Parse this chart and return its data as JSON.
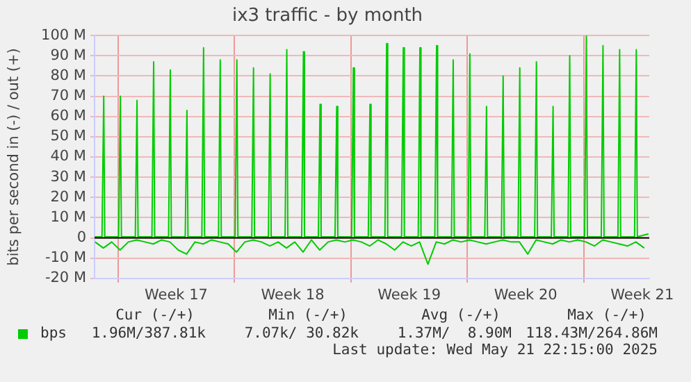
{
  "chart_data": {
    "type": "line",
    "title": "ix3 traffic - by month",
    "ylabel": "bits per second in (-) / out (+)",
    "xlim": [
      "2025-04-18T14:15",
      "2025-05-21T22:15"
    ],
    "ylim": [
      -20,
      100
    ],
    "xticks": [
      {
        "value": "2025-04-20T00:00",
        "label": null
      },
      {
        "value": "2025-04-23T12:00",
        "label": "Week 17"
      },
      {
        "value": "2025-04-27T00:00",
        "label": null
      },
      {
        "value": "2025-04-30T12:00",
        "label": "Week 18"
      },
      {
        "value": "2025-05-04T00:00",
        "label": null
      },
      {
        "value": "2025-05-07T12:00",
        "label": "Week 19"
      },
      {
        "value": "2025-05-11T00:00",
        "label": null
      },
      {
        "value": "2025-05-14T12:00",
        "label": "Week 20"
      },
      {
        "value": "2025-05-18T00:00",
        "label": null
      },
      {
        "value": "2025-05-21T12:00",
        "label": "Week 21"
      }
    ],
    "yticks": [
      {
        "value": -20,
        "label": "-20 M"
      },
      {
        "value": -10,
        "label": "-10 M"
      },
      0,
      {
        "value": 10,
        "label": "10 M"
      },
      {
        "value": 20,
        "label": "20 M"
      },
      {
        "value": 30,
        "label": "30 M"
      },
      {
        "value": 40,
        "label": "40 M"
      },
      {
        "value": 50,
        "label": "50 M"
      },
      {
        "value": 60,
        "label": "60 M"
      },
      {
        "value": 70,
        "label": "70 M"
      },
      {
        "value": 80,
        "label": "80 M"
      },
      {
        "value": 90,
        "label": "90 M"
      },
      {
        "value": 100,
        "label": "100 M"
      }
    ],
    "grid": true,
    "legend": "bottom left",
    "marker": "none",
    "line_style": "solid",
    "ref_lines": [
      {
        "axis": "y",
        "value": 0,
        "color": "#000000"
      }
    ],
    "series": [
      {
        "name": "bps",
        "color": "#00cc00",
        "x": [
          "2025-04-18T14:30",
          "2025-04-19T01:00",
          "2025-04-19T03:30",
          "2025-04-19T05:00",
          "2025-04-20T01:00",
          "2025-04-20T03:30",
          "2025-04-20T05:00",
          "2025-04-21T01:00",
          "2025-04-21T03:30",
          "2025-04-21T05:00",
          "2025-04-22T01:00",
          "2025-04-22T03:30",
          "2025-04-22T05:00",
          "2025-04-23T01:00",
          "2025-04-23T03:30",
          "2025-04-23T05:00",
          "2025-04-24T01:00",
          "2025-04-24T03:30",
          "2025-04-24T05:00",
          "2025-04-25T01:00",
          "2025-04-25T03:30",
          "2025-04-25T05:00",
          "2025-04-26T01:00",
          "2025-04-26T03:30",
          "2025-04-26T05:00",
          "2025-04-27T01:00",
          "2025-04-27T03:30",
          "2025-04-27T05:00",
          "2025-04-28T01:00",
          "2025-04-28T03:30",
          "2025-04-28T05:00",
          "2025-04-29T01:00",
          "2025-04-29T03:30",
          "2025-04-29T05:00",
          "2025-04-30T01:00",
          "2025-04-30T03:30",
          "2025-04-30T05:00",
          "2025-05-01T01:00",
          "2025-05-01T03:30",
          "2025-05-01T05:00",
          "2025-05-02T01:00",
          "2025-05-02T03:30",
          "2025-05-02T05:00",
          "2025-05-03T01:00",
          "2025-05-03T03:30",
          "2025-05-03T05:00",
          "2025-05-04T01:00",
          "2025-05-04T03:30",
          "2025-05-04T05:00",
          "2025-05-05T01:00",
          "2025-05-05T03:30",
          "2025-05-05T05:00",
          "2025-05-06T01:00",
          "2025-05-06T03:30",
          "2025-05-06T05:00",
          "2025-05-07T01:00",
          "2025-05-07T03:30",
          "2025-05-07T05:00",
          "2025-05-08T01:00",
          "2025-05-08T03:30",
          "2025-05-08T05:00",
          "2025-05-09T01:00",
          "2025-05-09T03:30",
          "2025-05-09T05:00",
          "2025-05-10T01:00",
          "2025-05-10T03:30",
          "2025-05-10T05:00",
          "2025-05-11T01:00",
          "2025-05-11T03:30",
          "2025-05-11T05:00",
          "2025-05-12T01:00",
          "2025-05-12T03:30",
          "2025-05-12T05:00",
          "2025-05-13T01:00",
          "2025-05-13T03:30",
          "2025-05-13T05:00",
          "2025-05-14T01:00",
          "2025-05-14T03:30",
          "2025-05-14T05:00",
          "2025-05-15T01:00",
          "2025-05-15T03:30",
          "2025-05-15T05:00",
          "2025-05-16T01:00",
          "2025-05-16T03:30",
          "2025-05-16T05:00",
          "2025-05-17T01:00",
          "2025-05-17T03:30",
          "2025-05-17T05:00",
          "2025-05-18T01:00",
          "2025-05-18T03:30",
          "2025-05-18T05:00",
          "2025-05-19T01:00",
          "2025-05-19T03:30",
          "2025-05-19T05:00",
          "2025-05-20T01:00",
          "2025-05-20T03:30",
          "2025-05-20T05:00",
          "2025-05-21T01:00",
          "2025-05-21T03:30",
          "2025-05-21T05:00",
          "2025-05-21T21:00"
        ],
        "values": [
          0.5,
          0.5,
          70,
          0.5,
          0.5,
          70,
          0.5,
          0.5,
          68,
          0.5,
          0.5,
          87,
          0.5,
          0.5,
          83,
          0.5,
          0.5,
          63,
          0.5,
          0.5,
          94,
          0.5,
          0.5,
          88,
          0.5,
          0.5,
          88,
          0.5,
          0.5,
          84,
          0.5,
          0.5,
          81,
          0.5,
          0.5,
          93,
          0.5,
          0.5,
          92,
          0.5,
          0.5,
          66,
          0.5,
          0.5,
          65,
          0.5,
          0.5,
          84,
          0.5,
          0.5,
          66,
          0.5,
          0.5,
          96,
          0.5,
          0.5,
          94,
          0.5,
          0.5,
          94,
          0.5,
          0.5,
          95,
          0.5,
          0.5,
          88,
          0.5,
          0.5,
          91,
          0.5,
          0.5,
          65,
          0.5,
          0.5,
          80,
          0.5,
          0.5,
          84,
          0.5,
          0.5,
          87,
          0.5,
          0.5,
          65,
          0.5,
          0.5,
          90,
          0.5,
          0.5,
          100,
          0.5,
          0.5,
          95,
          0.5,
          0.5,
          93,
          0.5,
          0.5,
          93,
          0.5,
          2
        ]
      },
      {
        "color": "#00cc00",
        "x": [
          "2025-04-18T15:00",
          "2025-04-19T03:00",
          "2025-04-19T15:00",
          "2025-04-20T03:00",
          "2025-04-20T15:00",
          "2025-04-21T03:00",
          "2025-04-21T15:00",
          "2025-04-22T03:00",
          "2025-04-22T15:00",
          "2025-04-23T03:00",
          "2025-04-23T15:00",
          "2025-04-24T03:00",
          "2025-04-24T15:00",
          "2025-04-25T03:00",
          "2025-04-25T15:00",
          "2025-04-26T03:00",
          "2025-04-26T15:00",
          "2025-04-27T03:00",
          "2025-04-27T15:00",
          "2025-04-28T03:00",
          "2025-04-28T15:00",
          "2025-04-29T03:00",
          "2025-04-29T15:00",
          "2025-04-30T03:00",
          "2025-04-30T15:00",
          "2025-05-01T03:00",
          "2025-05-01T15:00",
          "2025-05-02T03:00",
          "2025-05-02T15:00",
          "2025-05-03T03:00",
          "2025-05-03T15:00",
          "2025-05-04T03:00",
          "2025-05-04T15:00",
          "2025-05-05T03:00",
          "2025-05-05T15:00",
          "2025-05-06T03:00",
          "2025-05-06T15:00",
          "2025-05-07T03:00",
          "2025-05-07T15:00",
          "2025-05-08T03:00",
          "2025-05-08T15:00",
          "2025-05-09T03:00",
          "2025-05-09T15:00",
          "2025-05-10T03:00",
          "2025-05-10T15:00",
          "2025-05-11T03:00",
          "2025-05-11T15:00",
          "2025-05-12T03:00",
          "2025-05-12T15:00",
          "2025-05-13T03:00",
          "2025-05-13T15:00",
          "2025-05-14T03:00",
          "2025-05-14T15:00",
          "2025-05-15T03:00",
          "2025-05-15T15:00",
          "2025-05-16T03:00",
          "2025-05-16T15:00",
          "2025-05-17T03:00",
          "2025-05-17T15:00",
          "2025-05-18T03:00",
          "2025-05-18T15:00",
          "2025-05-19T03:00",
          "2025-05-19T15:00",
          "2025-05-20T03:00",
          "2025-05-20T15:00",
          "2025-05-21T03:00",
          "2025-05-21T15:00"
        ],
        "values": [
          -2,
          -5,
          -2,
          -6,
          -2,
          -1,
          -2,
          -3,
          -1,
          -2,
          -6,
          -8,
          -2,
          -3,
          -1,
          -2,
          -3,
          -7,
          -2,
          -1,
          -2,
          -4,
          -2,
          -5,
          -2,
          -7,
          -1,
          -6,
          -2,
          -1,
          -2,
          -1,
          -2,
          -4,
          -1,
          -3,
          -6,
          -2,
          -4,
          -2,
          -13,
          -2,
          -3,
          -1,
          -2,
          -1,
          -2,
          -3,
          -2,
          -1,
          -2,
          -2,
          -8,
          -1,
          -2,
          -3,
          -1,
          -2,
          -1,
          -2,
          -4,
          -1,
          -2,
          -3,
          -4,
          -2,
          -5
        ]
      }
    ],
    "annotations": [
      "Cur (-/+)",
      "Min (-/+)",
      "Avg (-/+)",
      "Max (-/+)",
      "1.96M/387.81k",
      "7.07k/ 30.82k",
      "1.37M/  8.90M",
      "118.43M/264.86M",
      "Last update: Wed May 21 22:15:00 2025"
    ]
  }
}
